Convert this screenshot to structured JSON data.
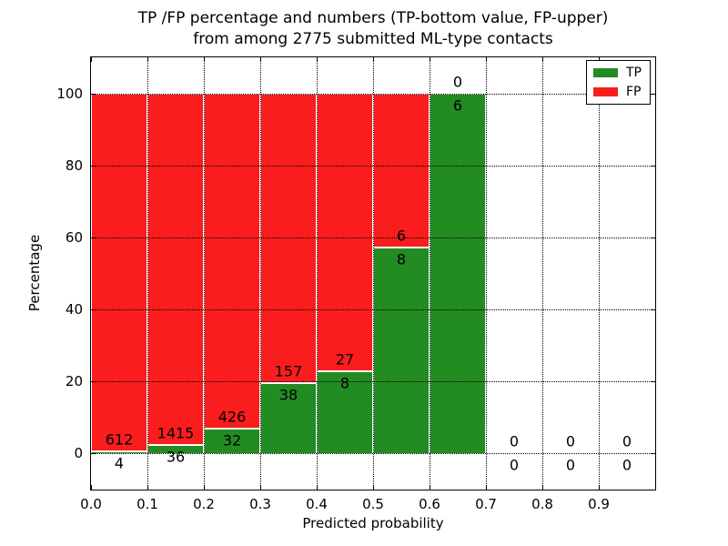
{
  "title": {
    "line1": "TP /FP percentage and numbers (TP-bottom value, FP-upper)",
    "line2": "from among 2775 submitted ML-type contacts"
  },
  "axes": {
    "xlabel": "Predicted probability",
    "ylabel": "Percentage"
  },
  "legend": {
    "items": [
      {
        "label": "TP",
        "color": "#228B22"
      },
      {
        "label": "FP",
        "color": "#FA1D1D"
      }
    ]
  },
  "chart_data": {
    "type": "bar",
    "stacked": true,
    "normalized": "percent-of-bin-total",
    "title": "TP /FP percentage and numbers (TP-bottom value, FP-upper) from among 2775 submitted ML-type contacts",
    "xlabel": "Predicted probability",
    "ylabel": "Percentage",
    "total_submitted_contacts": 2775,
    "xlim": [
      0.0,
      1.0
    ],
    "ylim": [
      -10,
      110
    ],
    "xticks": [
      "0.0",
      "0.1",
      "0.2",
      "0.3",
      "0.4",
      "0.5",
      "0.6",
      "0.7",
      "0.8",
      "0.9"
    ],
    "yticks": [
      0,
      20,
      40,
      60,
      80,
      100
    ],
    "grid": "dotted-black-above-bars",
    "legend_position": "upper right",
    "colors": {
      "tp": "#228B22",
      "fp": "#FA1D1D",
      "bar_edge": "#ffffff"
    },
    "series": [
      {
        "name": "TP",
        "position": "bottom",
        "color": "#228B22"
      },
      {
        "name": "FP",
        "position": "top",
        "color": "#FA1D1D"
      }
    ],
    "bins": [
      {
        "x_start": 0.0,
        "x_end": 0.1,
        "tp": 4,
        "fp": 612
      },
      {
        "x_start": 0.1,
        "x_end": 0.2,
        "tp": 36,
        "fp": 1415
      },
      {
        "x_start": 0.2,
        "x_end": 0.3,
        "tp": 32,
        "fp": 426
      },
      {
        "x_start": 0.3,
        "x_end": 0.4,
        "tp": 38,
        "fp": 157
      },
      {
        "x_start": 0.4,
        "x_end": 0.5,
        "tp": 8,
        "fp": 27
      },
      {
        "x_start": 0.5,
        "x_end": 0.6,
        "tp": 8,
        "fp": 6
      },
      {
        "x_start": 0.6,
        "x_end": 0.7,
        "tp": 6,
        "fp": 0
      },
      {
        "x_start": 0.7,
        "x_end": 0.8,
        "tp": 0,
        "fp": 0
      },
      {
        "x_start": 0.8,
        "x_end": 0.9,
        "tp": 0,
        "fp": 0
      },
      {
        "x_start": 0.9,
        "x_end": 1.0,
        "tp": 0,
        "fp": 0
      }
    ]
  }
}
